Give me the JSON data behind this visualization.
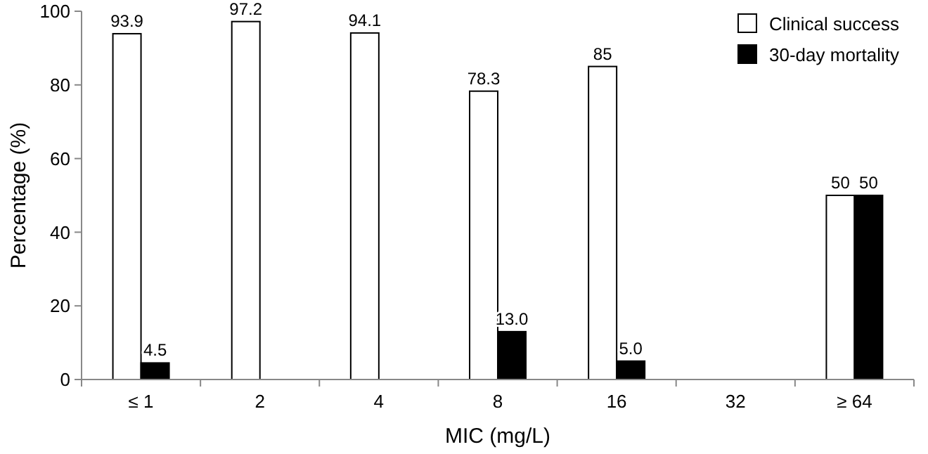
{
  "chart_data": {
    "type": "bar",
    "xlabel": "MIC (mg/L)",
    "ylabel": "Percentage (%)",
    "categories": [
      "≤ 1",
      "2",
      "4",
      "8",
      "16",
      "32",
      "≥ 64"
    ],
    "series": [
      {
        "name": "Clinical success",
        "color": "#ffffff",
        "values": [
          93.9,
          97.2,
          94.1,
          78.3,
          85,
          null,
          50
        ],
        "value_labels": [
          "93.9",
          "97.2",
          "94.1",
          "78.3",
          "85",
          null,
          "50"
        ]
      },
      {
        "name": "30-day mortality",
        "color": "#000000",
        "values": [
          4.5,
          null,
          null,
          13.0,
          5.0,
          null,
          50
        ],
        "value_labels": [
          "4.5",
          null,
          null,
          "13.0",
          "5.0",
          null,
          "50"
        ]
      }
    ],
    "ylim": [
      0,
      100
    ],
    "yticks": [
      0,
      20,
      40,
      60,
      80,
      100
    ],
    "grid": false,
    "legend": "top right"
  }
}
